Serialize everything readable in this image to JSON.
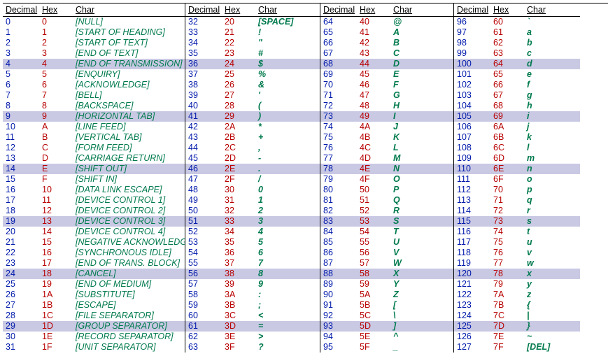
{
  "colors": {
    "decimal": "#0019aa",
    "hex": "#b80000",
    "char": "#007a4d",
    "highlight": "#c9c9e4",
    "background": "#ffffff",
    "border": "#000000"
  },
  "headers": {
    "dec": "Decimal",
    "hex": "Hex",
    "char": "Char"
  },
  "highlight_decimals": [
    4,
    9,
    14,
    19,
    24,
    29,
    36,
    41,
    46,
    51,
    56,
    61,
    68,
    73,
    78,
    83,
    88,
    93,
    100,
    105,
    110,
    115,
    120,
    125
  ],
  "groups": [
    {
      "rows": [
        {
          "d": "0",
          "h": "0",
          "c": "[NULL]"
        },
        {
          "d": "1",
          "h": "1",
          "c": "[START OF HEADING]"
        },
        {
          "d": "2",
          "h": "2",
          "c": "[START OF TEXT]"
        },
        {
          "d": "3",
          "h": "3",
          "c": "[END OF TEXT]"
        },
        {
          "d": "4",
          "h": "4",
          "c": "[END OF TRANSMISSION]"
        },
        {
          "d": "5",
          "h": "5",
          "c": "[ENQUIRY]"
        },
        {
          "d": "6",
          "h": "6",
          "c": "[ACKNOWLEDGE]"
        },
        {
          "d": "7",
          "h": "7",
          "c": "[BELL]"
        },
        {
          "d": "8",
          "h": "8",
          "c": "[BACKSPACE]"
        },
        {
          "d": "9",
          "h": "9",
          "c": "[HORIZONTAL TAB]"
        },
        {
          "d": "10",
          "h": "A",
          "c": "[LINE FEED]"
        },
        {
          "d": "11",
          "h": "B",
          "c": "[VERTICAL TAB]"
        },
        {
          "d": "12",
          "h": "C",
          "c": "[FORM FEED]"
        },
        {
          "d": "13",
          "h": "D",
          "c": "[CARRIAGE RETURN]"
        },
        {
          "d": "14",
          "h": "E",
          "c": "[SHIFT OUT]"
        },
        {
          "d": "15",
          "h": "F",
          "c": "[SHIFT IN]"
        },
        {
          "d": "16",
          "h": "10",
          "c": "[DATA LINK ESCAPE]"
        },
        {
          "d": "17",
          "h": "11",
          "c": "[DEVICE CONTROL 1]"
        },
        {
          "d": "18",
          "h": "12",
          "c": "[DEVICE CONTROL 2]"
        },
        {
          "d": "19",
          "h": "13",
          "c": "[DEVICE CONTROL 3]"
        },
        {
          "d": "20",
          "h": "14",
          "c": "[DEVICE CONTROL 4]"
        },
        {
          "d": "21",
          "h": "15",
          "c": "[NEGATIVE ACKNOWLEDGE]"
        },
        {
          "d": "22",
          "h": "16",
          "c": "[SYNCHRONOUS IDLE]"
        },
        {
          "d": "23",
          "h": "17",
          "c": "[END OF TRANS. BLOCK]"
        },
        {
          "d": "24",
          "h": "18",
          "c": "[CANCEL]"
        },
        {
          "d": "25",
          "h": "19",
          "c": "[END OF MEDIUM]"
        },
        {
          "d": "26",
          "h": "1A",
          "c": "[SUBSTITUTE]"
        },
        {
          "d": "27",
          "h": "1B",
          "c": "[ESCAPE]"
        },
        {
          "d": "28",
          "h": "1C",
          "c": "[FILE SEPARATOR]"
        },
        {
          "d": "29",
          "h": "1D",
          "c": "[GROUP SEPARATOR]"
        },
        {
          "d": "30",
          "h": "1E",
          "c": "[RECORD SEPARATOR]"
        },
        {
          "d": "31",
          "h": "1F",
          "c": "[UNIT SEPARATOR]"
        }
      ]
    },
    {
      "rows": [
        {
          "d": "32",
          "h": "20",
          "c": "[SPACE]"
        },
        {
          "d": "33",
          "h": "21",
          "c": "!"
        },
        {
          "d": "34",
          "h": "22",
          "c": "\""
        },
        {
          "d": "35",
          "h": "23",
          "c": "#"
        },
        {
          "d": "36",
          "h": "24",
          "c": "$"
        },
        {
          "d": "37",
          "h": "25",
          "c": "%"
        },
        {
          "d": "38",
          "h": "26",
          "c": "&"
        },
        {
          "d": "39",
          "h": "27",
          "c": "'"
        },
        {
          "d": "40",
          "h": "28",
          "c": "("
        },
        {
          "d": "41",
          "h": "29",
          "c": ")"
        },
        {
          "d": "42",
          "h": "2A",
          "c": "*"
        },
        {
          "d": "43",
          "h": "2B",
          "c": "+"
        },
        {
          "d": "44",
          "h": "2C",
          "c": ","
        },
        {
          "d": "45",
          "h": "2D",
          "c": "-"
        },
        {
          "d": "46",
          "h": "2E",
          "c": "."
        },
        {
          "d": "47",
          "h": "2F",
          "c": "/"
        },
        {
          "d": "48",
          "h": "30",
          "c": "0"
        },
        {
          "d": "49",
          "h": "31",
          "c": "1"
        },
        {
          "d": "50",
          "h": "32",
          "c": "2"
        },
        {
          "d": "51",
          "h": "33",
          "c": "3"
        },
        {
          "d": "52",
          "h": "34",
          "c": "4"
        },
        {
          "d": "53",
          "h": "35",
          "c": "5"
        },
        {
          "d": "54",
          "h": "36",
          "c": "6"
        },
        {
          "d": "55",
          "h": "37",
          "c": "7"
        },
        {
          "d": "56",
          "h": "38",
          "c": "8"
        },
        {
          "d": "57",
          "h": "39",
          "c": "9"
        },
        {
          "d": "58",
          "h": "3A",
          "c": ":"
        },
        {
          "d": "59",
          "h": "3B",
          "c": ";"
        },
        {
          "d": "60",
          "h": "3C",
          "c": "<"
        },
        {
          "d": "61",
          "h": "3D",
          "c": "="
        },
        {
          "d": "62",
          "h": "3E",
          "c": ">"
        },
        {
          "d": "63",
          "h": "3F",
          "c": "?"
        }
      ]
    },
    {
      "rows": [
        {
          "d": "64",
          "h": "40",
          "c": "@"
        },
        {
          "d": "65",
          "h": "41",
          "c": "A"
        },
        {
          "d": "66",
          "h": "42",
          "c": "B"
        },
        {
          "d": "67",
          "h": "43",
          "c": "C"
        },
        {
          "d": "68",
          "h": "44",
          "c": "D"
        },
        {
          "d": "69",
          "h": "45",
          "c": "E"
        },
        {
          "d": "70",
          "h": "46",
          "c": "F"
        },
        {
          "d": "71",
          "h": "47",
          "c": "G"
        },
        {
          "d": "72",
          "h": "48",
          "c": "H"
        },
        {
          "d": "73",
          "h": "49",
          "c": "I"
        },
        {
          "d": "74",
          "h": "4A",
          "c": "J"
        },
        {
          "d": "75",
          "h": "4B",
          "c": "K"
        },
        {
          "d": "76",
          "h": "4C",
          "c": "L"
        },
        {
          "d": "77",
          "h": "4D",
          "c": "M"
        },
        {
          "d": "78",
          "h": "4E",
          "c": "N"
        },
        {
          "d": "79",
          "h": "4F",
          "c": "O"
        },
        {
          "d": "80",
          "h": "50",
          "c": "P"
        },
        {
          "d": "81",
          "h": "51",
          "c": "Q"
        },
        {
          "d": "82",
          "h": "52",
          "c": "R"
        },
        {
          "d": "83",
          "h": "53",
          "c": "S"
        },
        {
          "d": "84",
          "h": "54",
          "c": "T"
        },
        {
          "d": "85",
          "h": "55",
          "c": "U"
        },
        {
          "d": "86",
          "h": "56",
          "c": "V"
        },
        {
          "d": "87",
          "h": "57",
          "c": "W"
        },
        {
          "d": "88",
          "h": "58",
          "c": "X"
        },
        {
          "d": "89",
          "h": "59",
          "c": "Y"
        },
        {
          "d": "90",
          "h": "5A",
          "c": "Z"
        },
        {
          "d": "91",
          "h": "5B",
          "c": "["
        },
        {
          "d": "92",
          "h": "5C",
          "c": "\\"
        },
        {
          "d": "93",
          "h": "5D",
          "c": "]"
        },
        {
          "d": "94",
          "h": "5E",
          "c": "^"
        },
        {
          "d": "95",
          "h": "5F",
          "c": "_"
        }
      ]
    },
    {
      "rows": [
        {
          "d": "96",
          "h": "60",
          "c": "`"
        },
        {
          "d": "97",
          "h": "61",
          "c": "a"
        },
        {
          "d": "98",
          "h": "62",
          "c": "b"
        },
        {
          "d": "99",
          "h": "63",
          "c": "c"
        },
        {
          "d": "100",
          "h": "64",
          "c": "d"
        },
        {
          "d": "101",
          "h": "65",
          "c": "e"
        },
        {
          "d": "102",
          "h": "66",
          "c": "f"
        },
        {
          "d": "103",
          "h": "67",
          "c": "g"
        },
        {
          "d": "104",
          "h": "68",
          "c": "h"
        },
        {
          "d": "105",
          "h": "69",
          "c": "i"
        },
        {
          "d": "106",
          "h": "6A",
          "c": "j"
        },
        {
          "d": "107",
          "h": "6B",
          "c": "k"
        },
        {
          "d": "108",
          "h": "6C",
          "c": "l"
        },
        {
          "d": "109",
          "h": "6D",
          "c": "m"
        },
        {
          "d": "110",
          "h": "6E",
          "c": "n"
        },
        {
          "d": "111",
          "h": "6F",
          "c": "o"
        },
        {
          "d": "112",
          "h": "70",
          "c": "p"
        },
        {
          "d": "113",
          "h": "71",
          "c": "q"
        },
        {
          "d": "114",
          "h": "72",
          "c": "r"
        },
        {
          "d": "115",
          "h": "73",
          "c": "s"
        },
        {
          "d": "116",
          "h": "74",
          "c": "t"
        },
        {
          "d": "117",
          "h": "75",
          "c": "u"
        },
        {
          "d": "118",
          "h": "76",
          "c": "v"
        },
        {
          "d": "119",
          "h": "77",
          "c": "w"
        },
        {
          "d": "120",
          "h": "78",
          "c": "x"
        },
        {
          "d": "121",
          "h": "79",
          "c": "y"
        },
        {
          "d": "122",
          "h": "7A",
          "c": "z"
        },
        {
          "d": "123",
          "h": "7B",
          "c": "{"
        },
        {
          "d": "124",
          "h": "7C",
          "c": "|"
        },
        {
          "d": "125",
          "h": "7D",
          "c": "}"
        },
        {
          "d": "126",
          "h": "7E",
          "c": "~"
        },
        {
          "d": "127",
          "h": "7F",
          "c": "[DEL]"
        }
      ]
    }
  ]
}
